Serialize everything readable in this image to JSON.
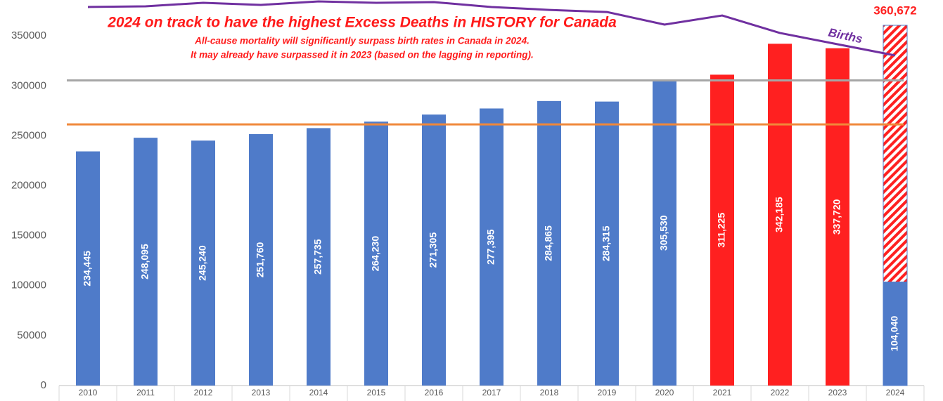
{
  "chart_data": {
    "type": "bar",
    "title": "2024 on track to have the highest Excess Deaths in HISTORY for Canada",
    "subtitle": [
      "All-cause mortality will significantly surpass birth rates in Canada in 2024.",
      "It may already have surpassed it in 2023 (based on the lagging in reporting)."
    ],
    "categories": [
      "2010",
      "2011",
      "2012",
      "2013",
      "2014",
      "2015",
      "2016",
      "2017",
      "2018",
      "2019",
      "2020",
      "2021",
      "2022",
      "2023",
      "2024"
    ],
    "series": [
      {
        "values": [
          234445,
          248095,
          245240,
          251760,
          257735,
          264230,
          271305,
          277395,
          284865,
          284315,
          305530,
          311225,
          342185,
          337720,
          104040
        ],
        "value_labels": [
          "234,445",
          "248,095",
          "245,240",
          "251,760",
          "257,735",
          "264,230",
          "271,305",
          "277,395",
          "284,865",
          "284,315",
          "305,530",
          "311,225",
          "342,185",
          "337,720",
          "104,040"
        ],
        "colors": [
          "#4f7bc9",
          "#4f7bc9",
          "#4f7bc9",
          "#4f7bc9",
          "#4f7bc9",
          "#4f7bc9",
          "#4f7bc9",
          "#4f7bc9",
          "#4f7bc9",
          "#4f7bc9",
          "#4f7bc9",
          "#ff2020",
          "#ff2020",
          "#ff2020",
          "#4f7bc9"
        ]
      },
      {
        "name": "Births",
        "type": "line",
        "color": "#7030a0",
        "values": [
          379000,
          379700,
          383200,
          381100,
          384600,
          383200,
          383900,
          379000,
          376100,
          374000,
          361400,
          370500,
          353000,
          341700,
          330500
        ]
      }
    ],
    "projection": {
      "value": 360672,
      "value_label": "360,672",
      "color": "#ff2020"
    },
    "reference_lines": [
      {
        "value": 305530,
        "color": "#a6a6a6"
      },
      {
        "value": 261500,
        "color": "#f0883a"
      }
    ],
    "ylim": [
      0,
      386000
    ],
    "yticks": [
      0,
      50000,
      100000,
      150000,
      200000,
      250000,
      300000,
      350000
    ],
    "grid": false
  }
}
